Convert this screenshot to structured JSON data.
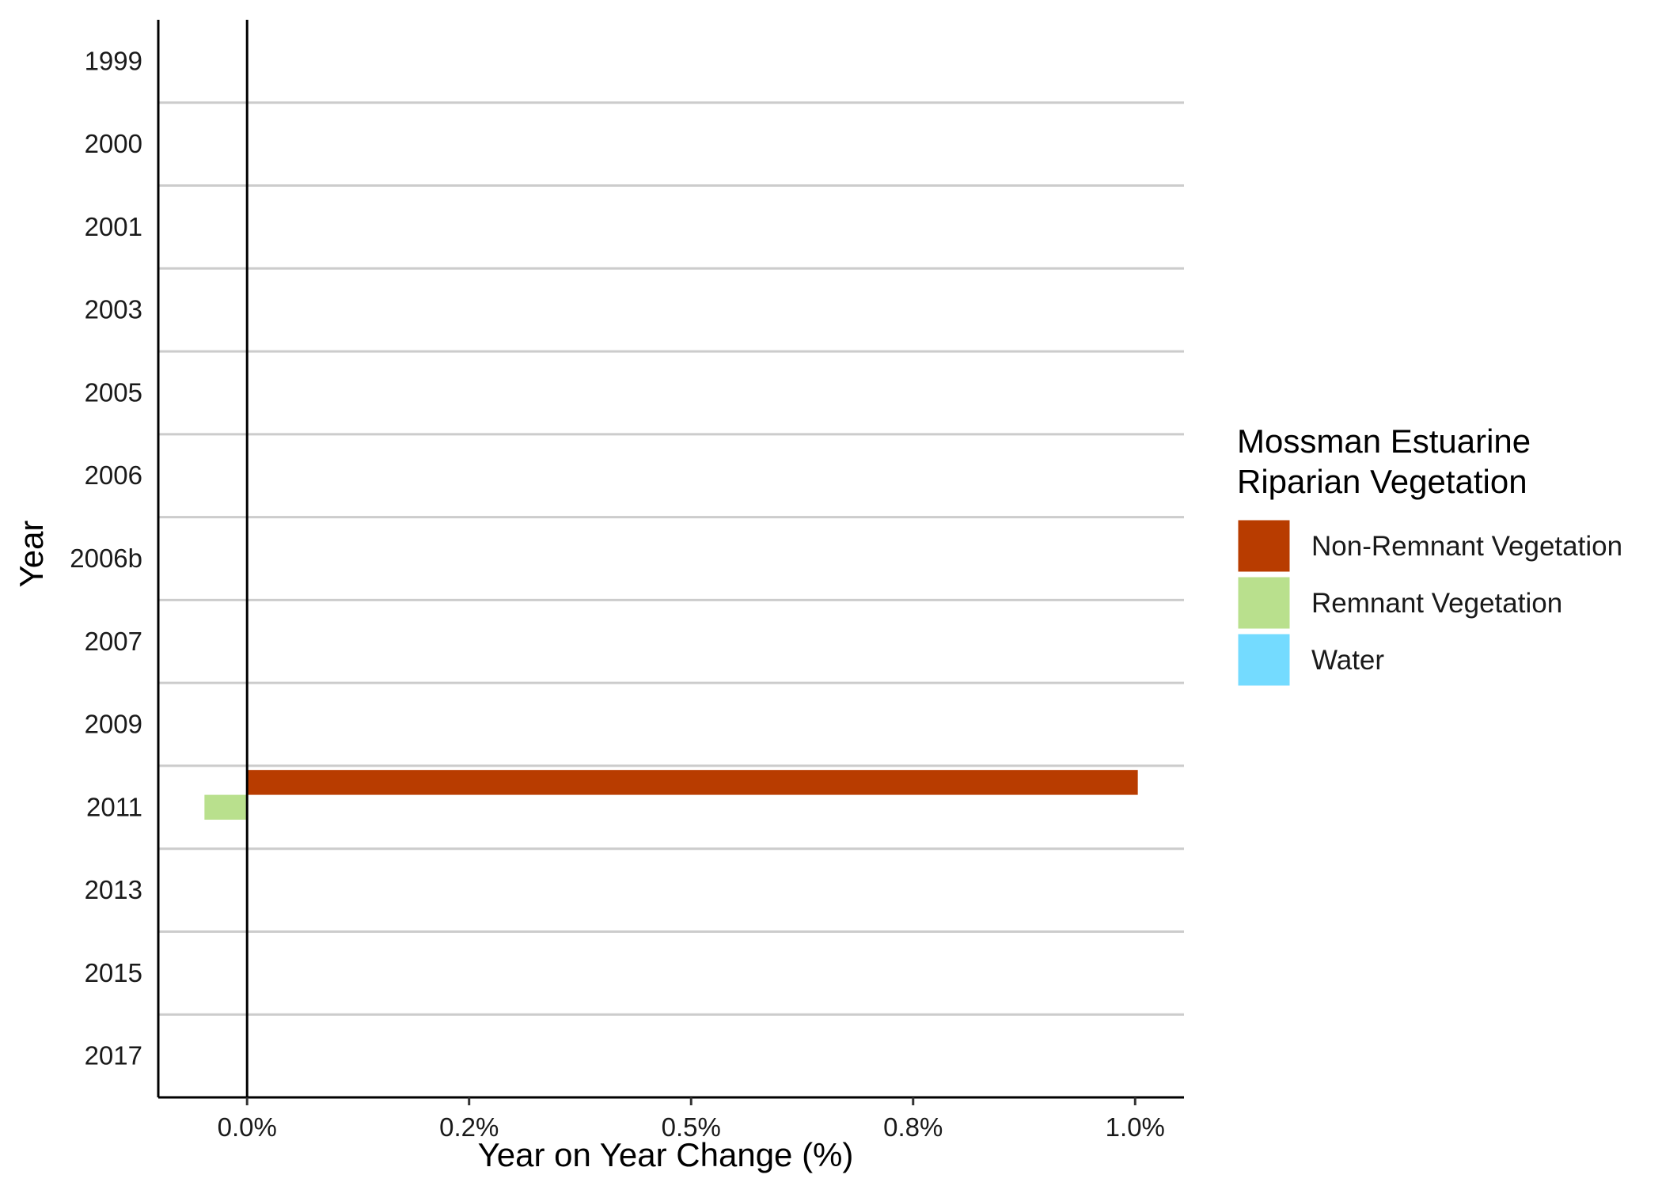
{
  "chart_data": {
    "type": "bar",
    "orientation": "horizontal",
    "categories": [
      "1999",
      "2000",
      "2001",
      "2003",
      "2005",
      "2006",
      "2006b",
      "2007",
      "2009",
      "2011",
      "2013",
      "2015",
      "2017"
    ],
    "series": [
      {
        "name": "Non-Remnant Vegetation",
        "color": "#b83c00",
        "values": [
          0,
          0,
          0,
          0,
          0,
          0,
          0,
          0,
          0,
          1.003,
          0,
          0,
          0
        ]
      },
      {
        "name": "Remnant Vegetation",
        "color": "#b9e08d",
        "values": [
          0,
          0,
          0,
          0,
          0,
          0,
          0,
          0,
          0,
          -0.048,
          0,
          0,
          0
        ]
      },
      {
        "name": "Water",
        "color": "#74dbff",
        "values": [
          0,
          0,
          0,
          0,
          0,
          0,
          0,
          0,
          0,
          0,
          0,
          0,
          0
        ]
      }
    ],
    "xlabel": "Year on Year Change (%)",
    "ylabel": "Year",
    "xlim": [
      -0.1,
      1.055
    ],
    "xticks": [
      0.0,
      0.25,
      0.5,
      0.75,
      1.0
    ],
    "xtick_labels": [
      "0.0%",
      "0.2%",
      "0.5%",
      "0.8%",
      "1.0%"
    ],
    "legend": {
      "title_lines": [
        "Mossman Estuarine",
        "Riparian Vegetation"
      ],
      "position": "right"
    },
    "grid": "horizontal separators between categories",
    "zero_line": true
  }
}
